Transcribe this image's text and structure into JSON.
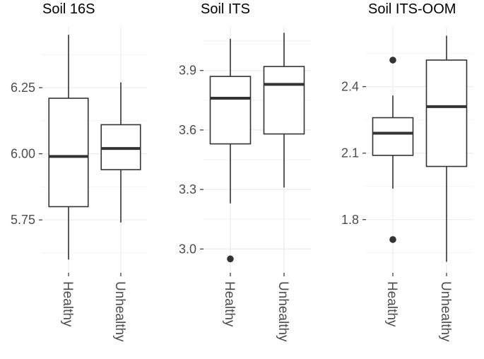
{
  "chart_data": [
    {
      "type": "boxplot",
      "title": "Soil 16S",
      "categories": [
        "Healthy",
        "Unhealthy"
      ],
      "ylim": [
        5.55,
        6.48
      ],
      "yticks": [
        5.75,
        6.0,
        6.25
      ],
      "ytick_labels": [
        "5.75",
        "6.00",
        "6.25"
      ],
      "boxes": [
        {
          "name": "Healthy",
          "min": 5.6,
          "q1": 5.8,
          "median": 5.99,
          "q3": 6.21,
          "max": 6.45,
          "outliers": []
        },
        {
          "name": "Unhealthy",
          "min": 5.74,
          "q1": 5.94,
          "median": 6.02,
          "q3": 6.11,
          "max": 6.27,
          "outliers": []
        }
      ]
    },
    {
      "type": "boxplot",
      "title": "Soil ITS",
      "categories": [
        "Healthy",
        "Unhealthy"
      ],
      "ylim": [
        2.88,
        4.12
      ],
      "yticks": [
        3.0,
        3.3,
        3.6,
        3.9
      ],
      "ytick_labels": [
        "3.0",
        "3.3",
        "3.6",
        "3.9"
      ],
      "boxes": [
        {
          "name": "Healthy",
          "min": 3.23,
          "q1": 3.53,
          "median": 3.76,
          "q3": 3.87,
          "max": 4.06,
          "outliers": [
            2.95
          ]
        },
        {
          "name": "Unhealthy",
          "min": 3.31,
          "q1": 3.58,
          "median": 3.83,
          "q3": 3.92,
          "max": 4.09,
          "outliers": []
        }
      ]
    },
    {
      "type": "boxplot",
      "title": "Soil ITS-OOM",
      "categories": [
        "Healthy",
        "Unhealthy"
      ],
      "ylim": [
        1.56,
        2.67
      ],
      "yticks": [
        1.8,
        2.1,
        2.4
      ],
      "ytick_labels": [
        "1.8",
        "2.1",
        "2.4"
      ],
      "boxes": [
        {
          "name": "Healthy",
          "min": 1.94,
          "q1": 2.09,
          "median": 2.19,
          "q3": 2.26,
          "max": 2.36,
          "outliers": [
            2.52,
            1.71
          ]
        },
        {
          "name": "Unhealthy",
          "min": 1.61,
          "q1": 2.04,
          "median": 2.31,
          "q3": 2.52,
          "max": 2.63,
          "outliers": []
        }
      ]
    }
  ]
}
